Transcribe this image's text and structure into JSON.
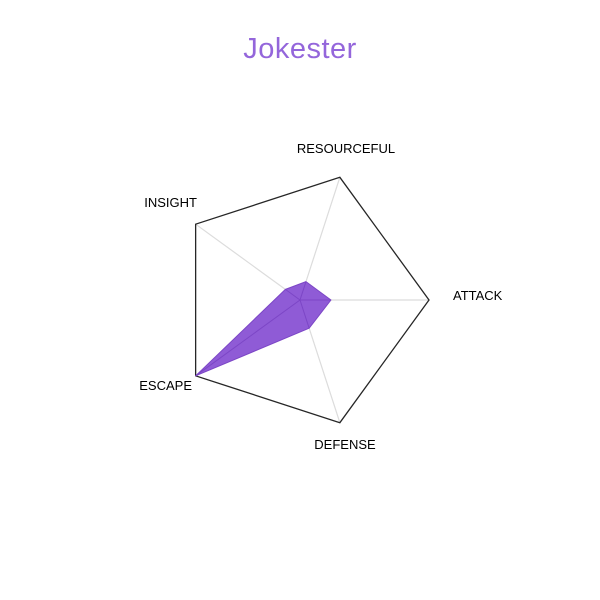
{
  "title": {
    "text": "Jokester",
    "color": "#9466db"
  },
  "background_color": "#ffffff",
  "chart_data": {
    "type": "radar",
    "title": "Jokester",
    "categories": [
      "RESOURCEFUL",
      "ATTACK",
      "DEFENSE",
      "ESCAPE",
      "INSIGHT"
    ],
    "values": [
      0.15,
      0.24,
      0.23,
      1.0,
      0.14
    ],
    "rmax": 1,
    "rmin": 0,
    "legend": false,
    "grid": "radial-spokes-and-outer-pentagon-only",
    "tick_labels": "none",
    "colors": {
      "fill": "#8f5bd6",
      "edge": "#7c46c6",
      "outline": "#262626",
      "axis_line": "#dcdcdc",
      "label": "#000000"
    }
  }
}
